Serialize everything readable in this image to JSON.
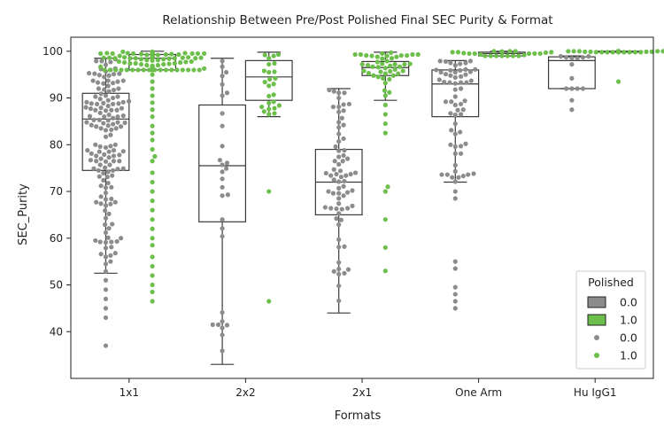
{
  "chart_data": {
    "type": "box",
    "title": "Relationship Between Pre/Post Polished Final SEC Purity & Format",
    "xlabel": "Formats",
    "ylabel": "SEC_Purity",
    "categories": [
      "1x1",
      "2x2",
      "2x1",
      "One Arm",
      "Hu IgG1"
    ],
    "ylim": [
      30,
      103
    ],
    "yticks": [
      40,
      50,
      60,
      70,
      80,
      90,
      100
    ],
    "grid": false,
    "legend": {
      "title": "Polished",
      "placement": "bottom-right",
      "entries": [
        {
          "kind": "box",
          "label": "0.0",
          "color": "#8c8c8c"
        },
        {
          "kind": "box",
          "label": "1.0",
          "color": "#6cbf4a"
        },
        {
          "kind": "point",
          "label": "0.0",
          "color": "#8c8c8c"
        },
        {
          "kind": "point",
          "label": "1.0",
          "color": "#6cbf4a"
        }
      ]
    },
    "colors": {
      "unpolished": "#8c8c8c",
      "polished": "#6cbf4a",
      "box_edge": "#3a3a3a"
    },
    "series": [
      {
        "polished": "0.0",
        "boxes": [
          {
            "category": "1x1",
            "whisker_low": 52.5,
            "q1": 74.5,
            "median": 85.5,
            "q3": 91.0,
            "whisker_high": 98.5
          },
          {
            "category": "2x2",
            "whisker_low": 33.0,
            "q1": 63.5,
            "median": 75.5,
            "q3": 88.5,
            "whisker_high": 98.5
          },
          {
            "category": "2x1",
            "whisker_low": 44.0,
            "q1": 65.0,
            "median": 72.0,
            "q3": 79.0,
            "whisker_high": 92.0
          },
          {
            "category": "One Arm",
            "whisker_low": 72.0,
            "q1": 86.0,
            "median": 93.0,
            "q3": 96.0,
            "whisker_high": 98.0
          },
          {
            "category": "Hu IgG1",
            "whisker_low": 92.0,
            "q1": 92.0,
            "median": 98.0,
            "q3": 98.8,
            "whisker_high": 99.0
          }
        ],
        "outliers": [
          {
            "category": "1x1",
            "values": [
              51.0,
              49.0,
              47.0,
              45.0,
              43.0,
              37.0
            ]
          },
          {
            "category": "One Arm",
            "values": [
              70.0,
              68.5,
              55.0,
              53.5,
              49.5,
              48.0,
              46.5,
              45.0
            ]
          },
          {
            "category": "Hu IgG1",
            "values": [
              89.5,
              87.5
            ]
          }
        ]
      },
      {
        "polished": "1.0",
        "boxes": [
          {
            "category": "1x1",
            "whisker_low": 96.0,
            "q1": 96.0,
            "median": 98.5,
            "q3": 99.3,
            "whisker_high": 100.0
          },
          {
            "category": "2x2",
            "whisker_low": 86.0,
            "q1": 89.5,
            "median": 94.5,
            "q3": 98.0,
            "whisker_high": 99.8
          },
          {
            "category": "2x1",
            "whisker_low": 89.5,
            "q1": 94.8,
            "median": 96.5,
            "q3": 97.8,
            "whisker_high": 99.8
          },
          {
            "category": "One Arm",
            "whisker_low": 99.0,
            "q1": 99.0,
            "median": 99.5,
            "q3": 99.8,
            "whisker_high": 100.0
          },
          {
            "category": "Hu IgG1",
            "whisker_low": 99.8,
            "q1": 99.8,
            "median": 100.0,
            "q3": 100.0,
            "whisker_high": 100.0
          }
        ],
        "outliers": [
          {
            "category": "1x1",
            "values": [
              95.0,
              93.5,
              92.0,
              90.5,
              89.0,
              87.5,
              86.0,
              84.0,
              82.5,
              81.0,
              79.0,
              77.5,
              76.5,
              74.0,
              72.0,
              70.0,
              68.0,
              66.0,
              64.0,
              62.0,
              60.0,
              58.5,
              56.0,
              54.0,
              52.0,
              50.0,
              48.5,
              46.5
            ]
          },
          {
            "category": "2x2",
            "values": [
              70.0,
              46.5
            ]
          },
          {
            "category": "2x1",
            "values": [
              88.5,
              86.5,
              84.5,
              82.5,
              71.0,
              70.0,
              64.0,
              58.0,
              53.0
            ]
          },
          {
            "category": "Hu IgG1",
            "values": [
              93.5
            ]
          }
        ]
      }
    ]
  }
}
